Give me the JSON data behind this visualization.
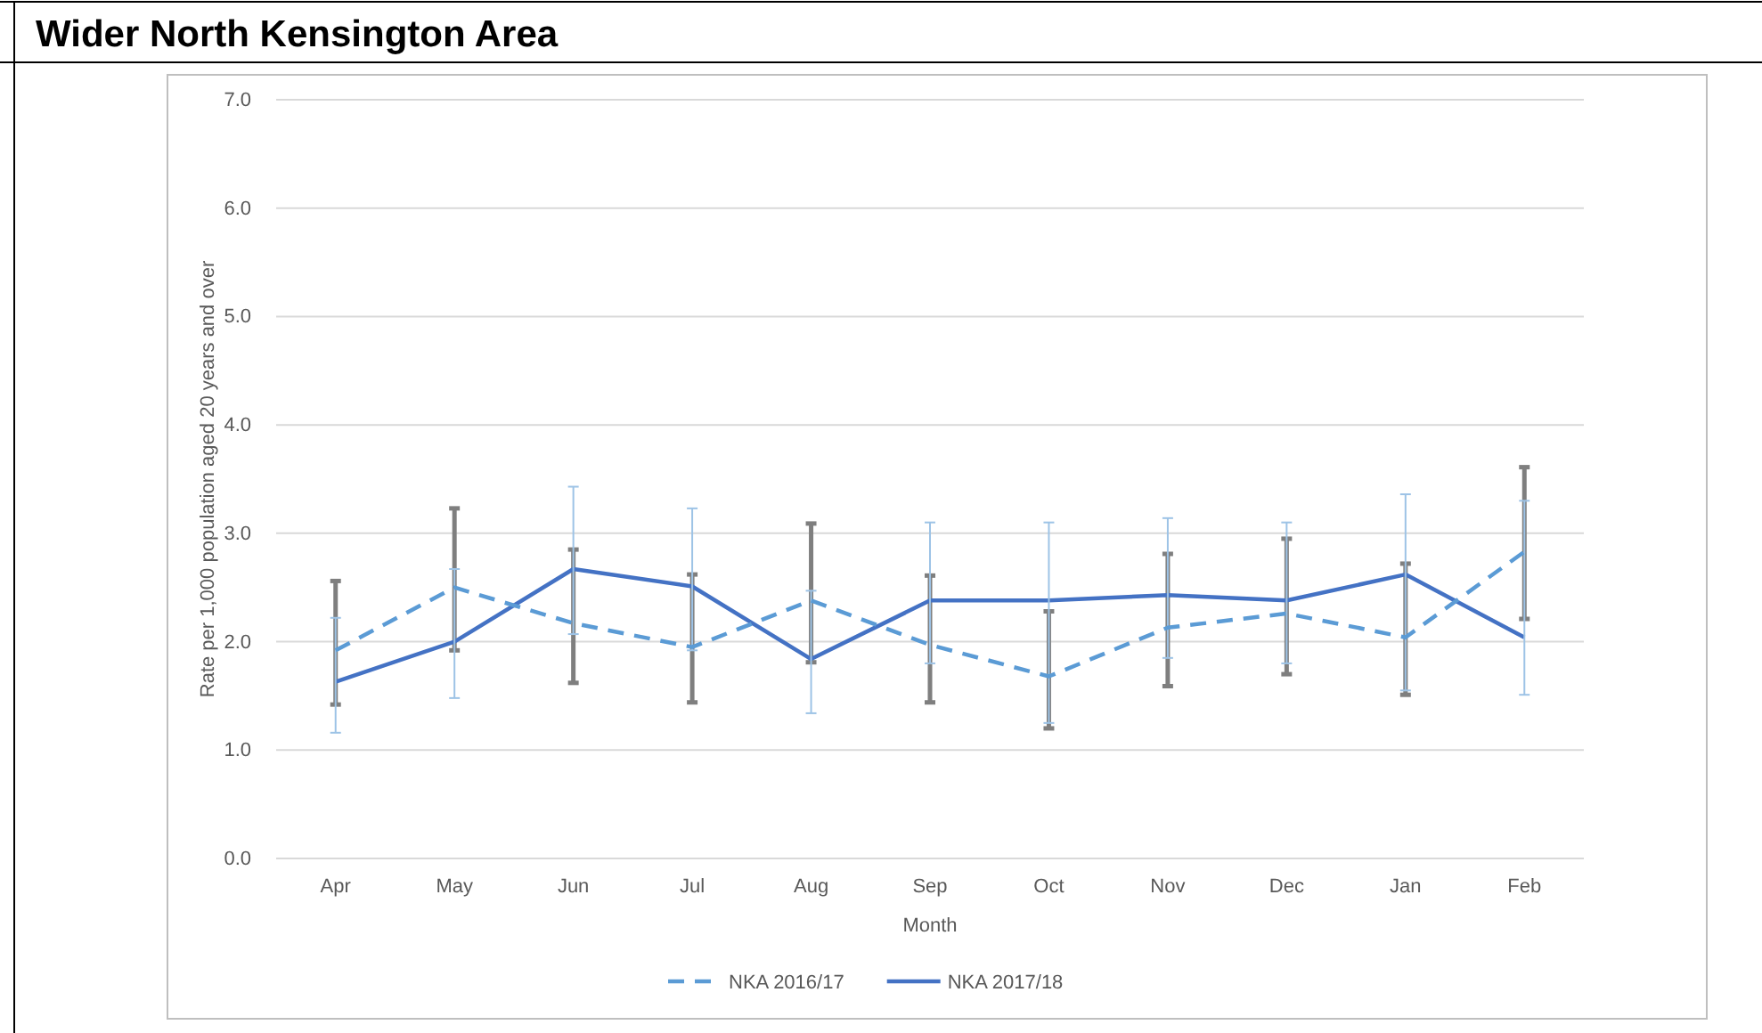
{
  "chart_data": {
    "type": "line",
    "title": "Wider North Kensington Area",
    "xlabel": "Month",
    "ylabel": "Rate per 1,000 population aged 20 years and over",
    "categories": [
      "Apr",
      "May",
      "Jun",
      "Jul",
      "Aug",
      "Sep",
      "Oct",
      "Nov",
      "Dec",
      "Jan",
      "Feb"
    ],
    "series": [
      {
        "name": "NKA 2016/17",
        "color": "#5b9bd5",
        "line_style": "dashed",
        "values": [
          1.92,
          2.5,
          2.17,
          1.95,
          2.38,
          1.97,
          1.68,
          2.13,
          2.26,
          2.04,
          2.83
        ],
        "errors": [
          [
            1.16,
            2.22
          ],
          [
            1.48,
            2.67
          ],
          [
            2.07,
            3.43
          ],
          [
            1.92,
            3.23
          ],
          [
            1.34,
            2.47
          ],
          [
            1.8,
            3.1
          ],
          [
            1.25,
            3.1
          ],
          [
            1.85,
            3.14
          ],
          [
            1.8,
            3.1
          ],
          [
            1.55,
            3.36
          ],
          [
            1.51,
            3.3
          ]
        ]
      },
      {
        "name": "NKA 2017/18",
        "color": "#4472c4",
        "line_style": "solid",
        "values": [
          1.63,
          2.0,
          2.67,
          2.51,
          1.84,
          2.38,
          2.38,
          2.43,
          2.38,
          2.62,
          2.04
        ],
        "errors": [
          [
            1.42,
            2.56
          ],
          [
            1.92,
            3.23
          ],
          [
            1.62,
            2.85
          ],
          [
            1.44,
            2.62
          ],
          [
            1.81,
            3.09
          ],
          [
            1.44,
            2.61
          ],
          [
            1.2,
            2.28
          ],
          [
            1.59,
            2.81
          ],
          [
            1.7,
            2.95
          ],
          [
            1.51,
            2.72
          ],
          [
            2.21,
            3.61
          ]
        ]
      }
    ],
    "ylim": [
      0,
      7
    ],
    "yticks": [
      {
        "value": 0,
        "label": "0.0"
      },
      {
        "value": 1,
        "label": "1.0"
      },
      {
        "value": 2,
        "label": "2.0"
      },
      {
        "value": 3,
        "label": "3.0"
      },
      {
        "value": 4,
        "label": "4.0"
      },
      {
        "value": 5,
        "label": "5.0"
      },
      {
        "value": 6,
        "label": "6.0"
      },
      {
        "value": 7,
        "label": "7.0"
      }
    ],
    "grid": "y",
    "legend": "bottom",
    "marker": "none"
  }
}
